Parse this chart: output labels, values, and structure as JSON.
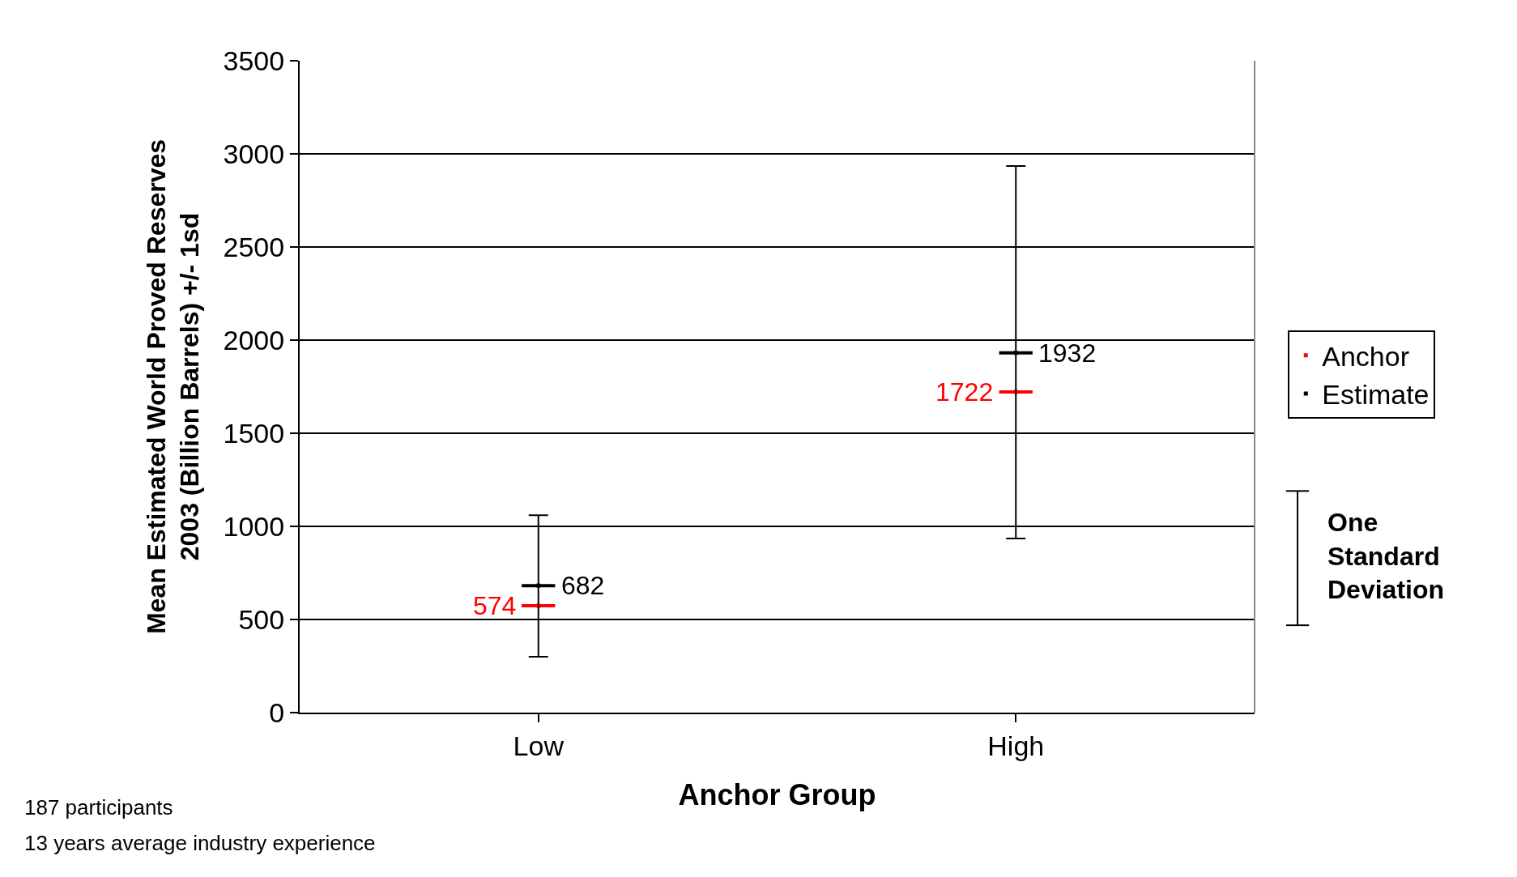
{
  "chart_data": {
    "type": "scatter",
    "xlabel": "Anchor Group",
    "ylabel": "Mean Estimated World Proved Reserves\n2003 (Billion Barrels) +/- 1sd",
    "categories": [
      "Low",
      "High"
    ],
    "series": [
      {
        "name": "Anchor",
        "color": "#ff0000",
        "values": [
          574,
          1722
        ]
      },
      {
        "name": "Estimate",
        "color": "#000000",
        "values": [
          682,
          1932
        ],
        "errors": [
          [
            300,
            1060
          ],
          [
            935,
            2935
          ]
        ]
      }
    ],
    "data_labels": true,
    "ylim": [
      0,
      3500
    ],
    "yticks": [
      0,
      500,
      1000,
      1500,
      2000,
      2500,
      3000,
      3500
    ],
    "grid": "y",
    "legend": "right",
    "annotations": [
      "One\nStandard\nDeviation",
      "187 participants",
      "13 years average industry experience"
    ]
  }
}
